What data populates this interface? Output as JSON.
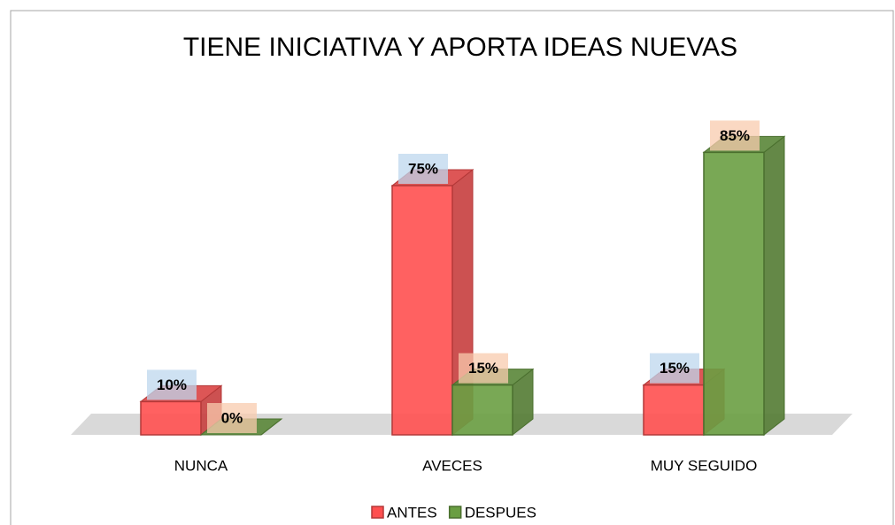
{
  "chart_data": {
    "type": "bar3d",
    "title": "TIENE INICIATIVA Y APORTA IDEAS NUEVAS",
    "categories": [
      "NUNCA",
      "AVECES",
      "MUY SEGUIDO"
    ],
    "series": [
      {
        "name": "ANTES",
        "color": "#ff5050",
        "values": [
          10,
          75,
          15
        ],
        "value_labels": [
          "10%",
          "75%",
          "15%"
        ]
      },
      {
        "name": "DESPUES",
        "color": "#6a9e42",
        "values": [
          0,
          15,
          85
        ],
        "value_labels": [
          "0%",
          "15%",
          "85%"
        ]
      }
    ]
  }
}
